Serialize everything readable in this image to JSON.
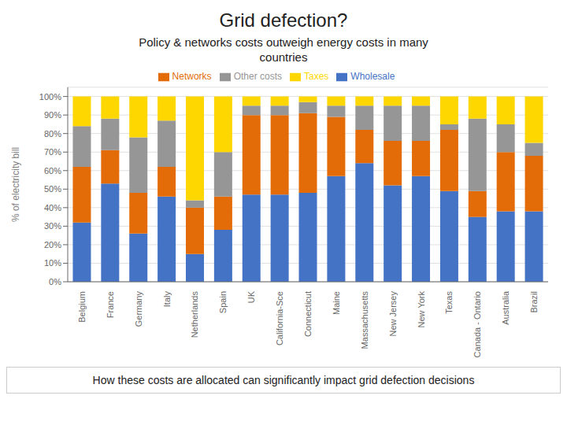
{
  "chart_data": {
    "type": "bar",
    "title": "Grid defection?",
    "subtitle": "Policy  & networks costs outweigh energy costs in many\ncountries",
    "annotations": [
      "How these costs are allocated can significantly impact grid defection decisions"
    ],
    "y_label": "% of electricity bill",
    "stacked": true,
    "grid": true,
    "legend": "top",
    "categories": [
      "Belgium",
      "France",
      "Germany",
      "Italy",
      "Netherlands",
      "Spain",
      "UK",
      "California-Sce",
      "Connecticut",
      "Maine",
      "Massachusetts",
      "New Jersey",
      "New York",
      "Texas",
      "Canada - Ontario",
      "Australia",
      "Brazil"
    ],
    "series": [
      {
        "name": "Wholesale",
        "color": "#4472C4",
        "values": [
          32,
          53,
          26,
          46,
          15,
          28,
          47,
          47,
          48,
          57,
          64,
          52,
          57,
          49,
          35,
          38,
          38
        ]
      },
      {
        "name": "Networks",
        "color": "#E36C09",
        "values": [
          30,
          18,
          22,
          16,
          25,
          18,
          43,
          43,
          43,
          32,
          18,
          24,
          19,
          33,
          14,
          32,
          30
        ]
      },
      {
        "name": "Other costs",
        "color": "#969696",
        "values": [
          22,
          17,
          30,
          25,
          4,
          24,
          5,
          5,
          6,
          6,
          13,
          19,
          19,
          3,
          39,
          15,
          7
        ]
      },
      {
        "name": "Taxes",
        "color": "#FFD700",
        "values": [
          16,
          12,
          22,
          13,
          56,
          30,
          5,
          5,
          3,
          5,
          5,
          5,
          5,
          15,
          12,
          15,
          25
        ]
      }
    ],
    "ylim": [
      0,
      105
    ],
    "yticks": [
      {
        "value": 0,
        "label": "0%"
      },
      {
        "value": 10,
        "label": "10%"
      },
      {
        "value": 20,
        "label": "20%"
      },
      {
        "value": 30,
        "label": "30%"
      },
      {
        "value": 40,
        "label": "40%"
      },
      {
        "value": 50,
        "label": "50%"
      },
      {
        "value": 60,
        "label": "60%"
      },
      {
        "value": 70,
        "label": "70%"
      },
      {
        "value": 80,
        "label": "80%"
      },
      {
        "value": 90,
        "label": "90%"
      },
      {
        "value": 100,
        "label": "100%"
      }
    ]
  }
}
